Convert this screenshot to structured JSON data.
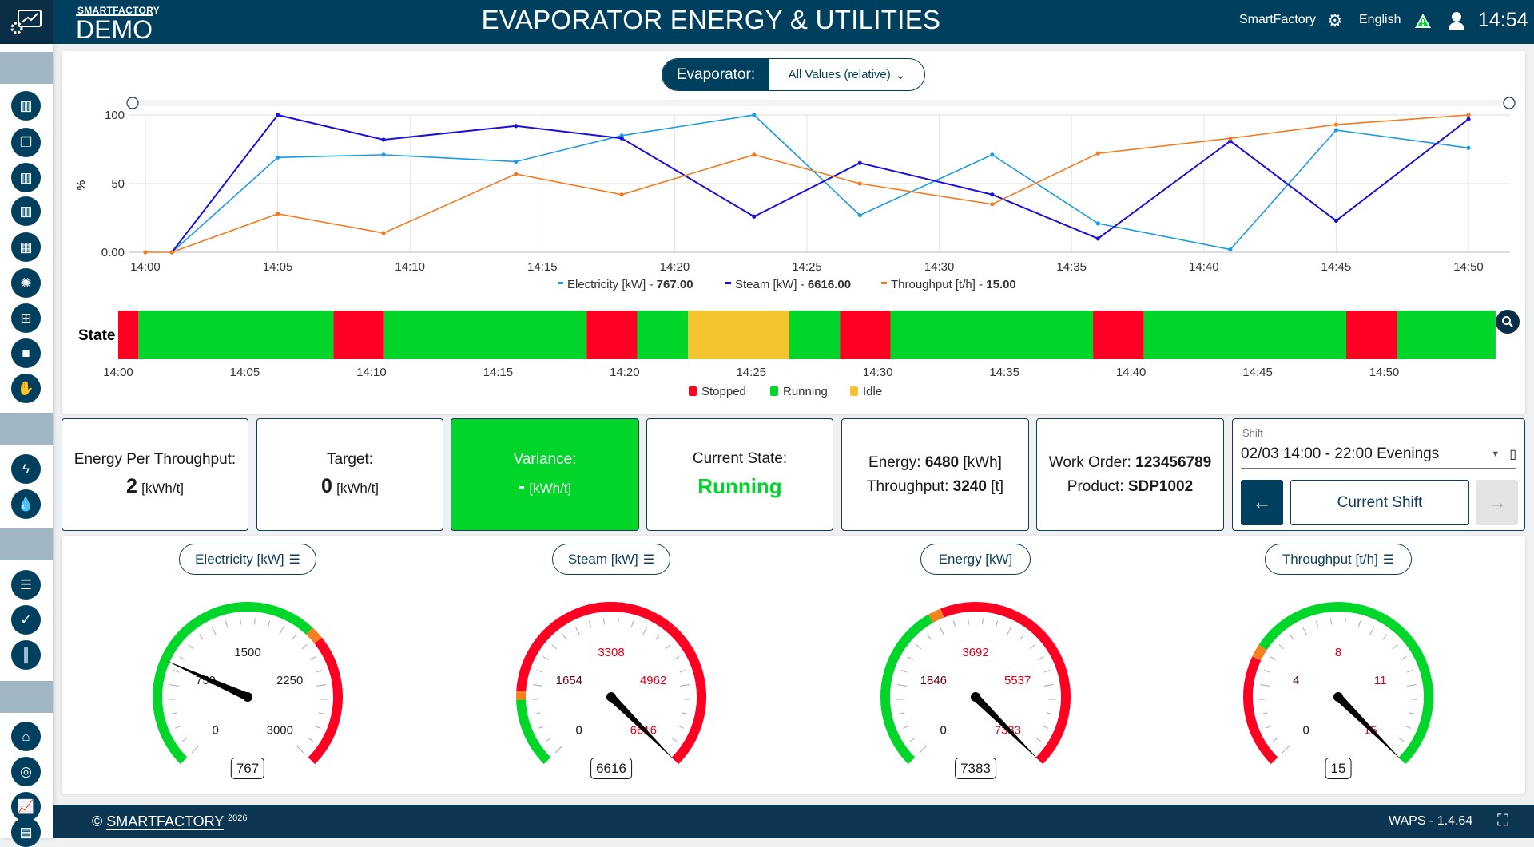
{
  "header": {
    "brand_small": "SMARTFACTORY",
    "brand_big": "DEMO",
    "title": "EVAPORATOR ENERGY & UTILITIES",
    "site": "SmartFactory",
    "language": "English",
    "time": "14:54",
    "icons": [
      "logo-icon",
      "brain-icon",
      "warning-icon",
      "user-icon"
    ]
  },
  "sidebar": {
    "groups": [
      [
        "chart-icon",
        "windows-icon",
        "chart-icon",
        "chart-icon",
        "grid-icon",
        "spinner-icon",
        "dashboard-icon",
        "square-icon",
        "hand-icon"
      ],
      [
        "bolt-icon",
        "drop-icon"
      ],
      [
        "clipboard-list-icon",
        "clipboard-check-icon",
        "barcode-icon"
      ],
      [
        "home-icon",
        "target-icon",
        "growth-chart-icon",
        "document-icon"
      ]
    ]
  },
  "filter": {
    "label": "Evaporator:",
    "value": "All Values (relative)"
  },
  "chart_data": [
    {
      "type": "line",
      "ylabel": "%",
      "ylim": [
        0,
        100
      ],
      "yticks": [
        "0.00",
        "50",
        "100"
      ],
      "grid": true,
      "legend": "bottom",
      "xticks": [
        "14:00",
        "14:05",
        "14:10",
        "14:15",
        "14:20",
        "14:25",
        "14:30",
        "14:35",
        "14:40",
        "14:45",
        "14:50"
      ],
      "series": [
        {
          "name": "Electricity [kW] - ",
          "last": "767.00",
          "color": "#1a9be6",
          "x": [
            "14:01",
            "14:05",
            "14:09",
            "14:14",
            "14:18",
            "14:23",
            "14:27",
            "14:32",
            "14:36",
            "14:41",
            "14:45",
            "14:50"
          ],
          "values": [
            0,
            69,
            71,
            66,
            85,
            100,
            27,
            71,
            21,
            2,
            89,
            76
          ]
        },
        {
          "name": "Steam [kW] - ",
          "last": "6616.00",
          "color": "#1a10d8",
          "x": [
            "14:01",
            "14:05",
            "14:09",
            "14:14",
            "14:18",
            "14:23",
            "14:27",
            "14:32",
            "14:36",
            "14:41",
            "14:45",
            "14:50"
          ],
          "values": [
            0,
            100,
            82,
            92,
            83,
            26,
            65,
            42,
            10,
            81,
            23,
            97
          ]
        },
        {
          "name": "Throughput [t/h] - ",
          "last": "15.00",
          "color": "#f47a20",
          "x": [
            "14:00",
            "14:01",
            "14:05",
            "14:09",
            "14:14",
            "14:18",
            "14:23",
            "14:27",
            "14:32",
            "14:36",
            "14:41",
            "14:45",
            "14:50"
          ],
          "values": [
            0,
            0,
            28,
            14,
            57,
            42,
            71,
            50,
            35,
            72,
            83,
            93,
            100
          ]
        }
      ]
    },
    {
      "type": "timeline",
      "label": "State",
      "xticks": [
        "14:00",
        "14:05",
        "14:10",
        "14:15",
        "14:20",
        "14:25",
        "14:30",
        "14:35",
        "14:40",
        "14:45",
        "14:50"
      ],
      "states": {
        "Stopped": "#ff0022",
        "Running": "#00d62a",
        "Idle": "#f5c431"
      },
      "segments": [
        [
          "14:00:00",
          "14:00:48",
          "Stopped"
        ],
        [
          "14:00:48",
          "14:08:30",
          "Running"
        ],
        [
          "14:08:30",
          "14:10:30",
          "Stopped"
        ],
        [
          "14:10:30",
          "14:18:30",
          "Running"
        ],
        [
          "14:18:30",
          "14:20:30",
          "Stopped"
        ],
        [
          "14:20:30",
          "14:22:30",
          "Running"
        ],
        [
          "14:22:30",
          "14:26:30",
          "Idle"
        ],
        [
          "14:26:30",
          "14:28:30",
          "Running"
        ],
        [
          "14:28:30",
          "14:30:30",
          "Stopped"
        ],
        [
          "14:30:30",
          "14:38:30",
          "Running"
        ],
        [
          "14:38:30",
          "14:40:30",
          "Stopped"
        ],
        [
          "14:40:30",
          "14:48:30",
          "Running"
        ],
        [
          "14:48:30",
          "14:50:30",
          "Stopped"
        ],
        [
          "14:50:30",
          "14:54:24",
          "Running"
        ]
      ]
    }
  ],
  "kpis": {
    "ept_label": "Energy Per Throughput:",
    "ept_value": "2",
    "ept_unit": "[kWh/t]",
    "target_label": "Target:",
    "target_value": "0",
    "target_unit": "[kWh/t]",
    "variance_label": "Variance:",
    "variance_value": "-",
    "variance_unit": "[kWh/t]",
    "variance_color": "#00d62a",
    "state_label": "Current State:",
    "state_value": "Running",
    "state_color": "#00d62a",
    "energy_label": "Energy:",
    "energy_value": "6480",
    "energy_unit": "[kWh]",
    "throughput_label": "Throughput:",
    "throughput_value": "3240",
    "throughput_unit": "[t]",
    "wo_label": "Work Order:",
    "wo_value": "123456789",
    "product_label": "Product:",
    "product_value": "SDP1002"
  },
  "shift": {
    "label": "Shift",
    "value": "02/03 14:00 - 22:00 Evenings",
    "current": "Current Shift"
  },
  "gauges": [
    {
      "title": "Electricity [kW]",
      "settings": true,
      "value": 767,
      "display": "767",
      "max": 3000,
      "labels": [
        "0",
        "750",
        "1500",
        "2250",
        "3000"
      ],
      "label_colors": [
        "#222",
        "#222",
        "#222",
        "#222",
        "#222"
      ],
      "bands": [
        [
          0,
          0.66,
          "#00d62a"
        ],
        [
          0.66,
          0.69,
          "#f58220"
        ],
        [
          0.69,
          1,
          "#ff0022"
        ]
      ]
    },
    {
      "title": "Steam [kW]",
      "settings": true,
      "value": 6616,
      "display": "6616",
      "max": 6616,
      "labels": [
        "0",
        "1654",
        "3308",
        "4962",
        "6616"
      ],
      "label_colors": [
        "#111",
        "#6b0010",
        "#e0001b",
        "#e0001b",
        "#e0001b"
      ],
      "bands": [
        [
          0,
          0.16,
          "#00d62a"
        ],
        [
          0.16,
          0.18,
          "#f58220"
        ],
        [
          0.18,
          1,
          "#ff0022"
        ]
      ]
    },
    {
      "title": "Energy [kW]",
      "settings": false,
      "value": 7383,
      "display": "7383",
      "max": 7383,
      "labels": [
        "0",
        "1846",
        "3692",
        "5537",
        "7383"
      ],
      "label_colors": [
        "#111",
        "#6b0010",
        "#e0001b",
        "#e0001b",
        "#e0001b"
      ],
      "bands": [
        [
          0,
          0.39,
          "#00d62a"
        ],
        [
          0.39,
          0.42,
          "#f58220"
        ],
        [
          0.42,
          1,
          "#ff0022"
        ]
      ]
    },
    {
      "title": "Throughput [t/h]",
      "settings": true,
      "value": 15,
      "display": "15",
      "max": 15,
      "labels": [
        "0",
        "4",
        "8",
        "11",
        "15"
      ],
      "label_colors": [
        "#111",
        "#6b0010",
        "#e0001b",
        "#e0001b",
        "#e0001b"
      ],
      "bands": [
        [
          0,
          0.26,
          "#ff0022"
        ],
        [
          0.26,
          0.29,
          "#f58220"
        ],
        [
          0.29,
          1,
          "#00d62a"
        ]
      ]
    }
  ],
  "footer": {
    "copyright": "© ",
    "brand": "SMARTFACTORY",
    "year": "2026",
    "version": "WAPS - 1.4.64"
  }
}
